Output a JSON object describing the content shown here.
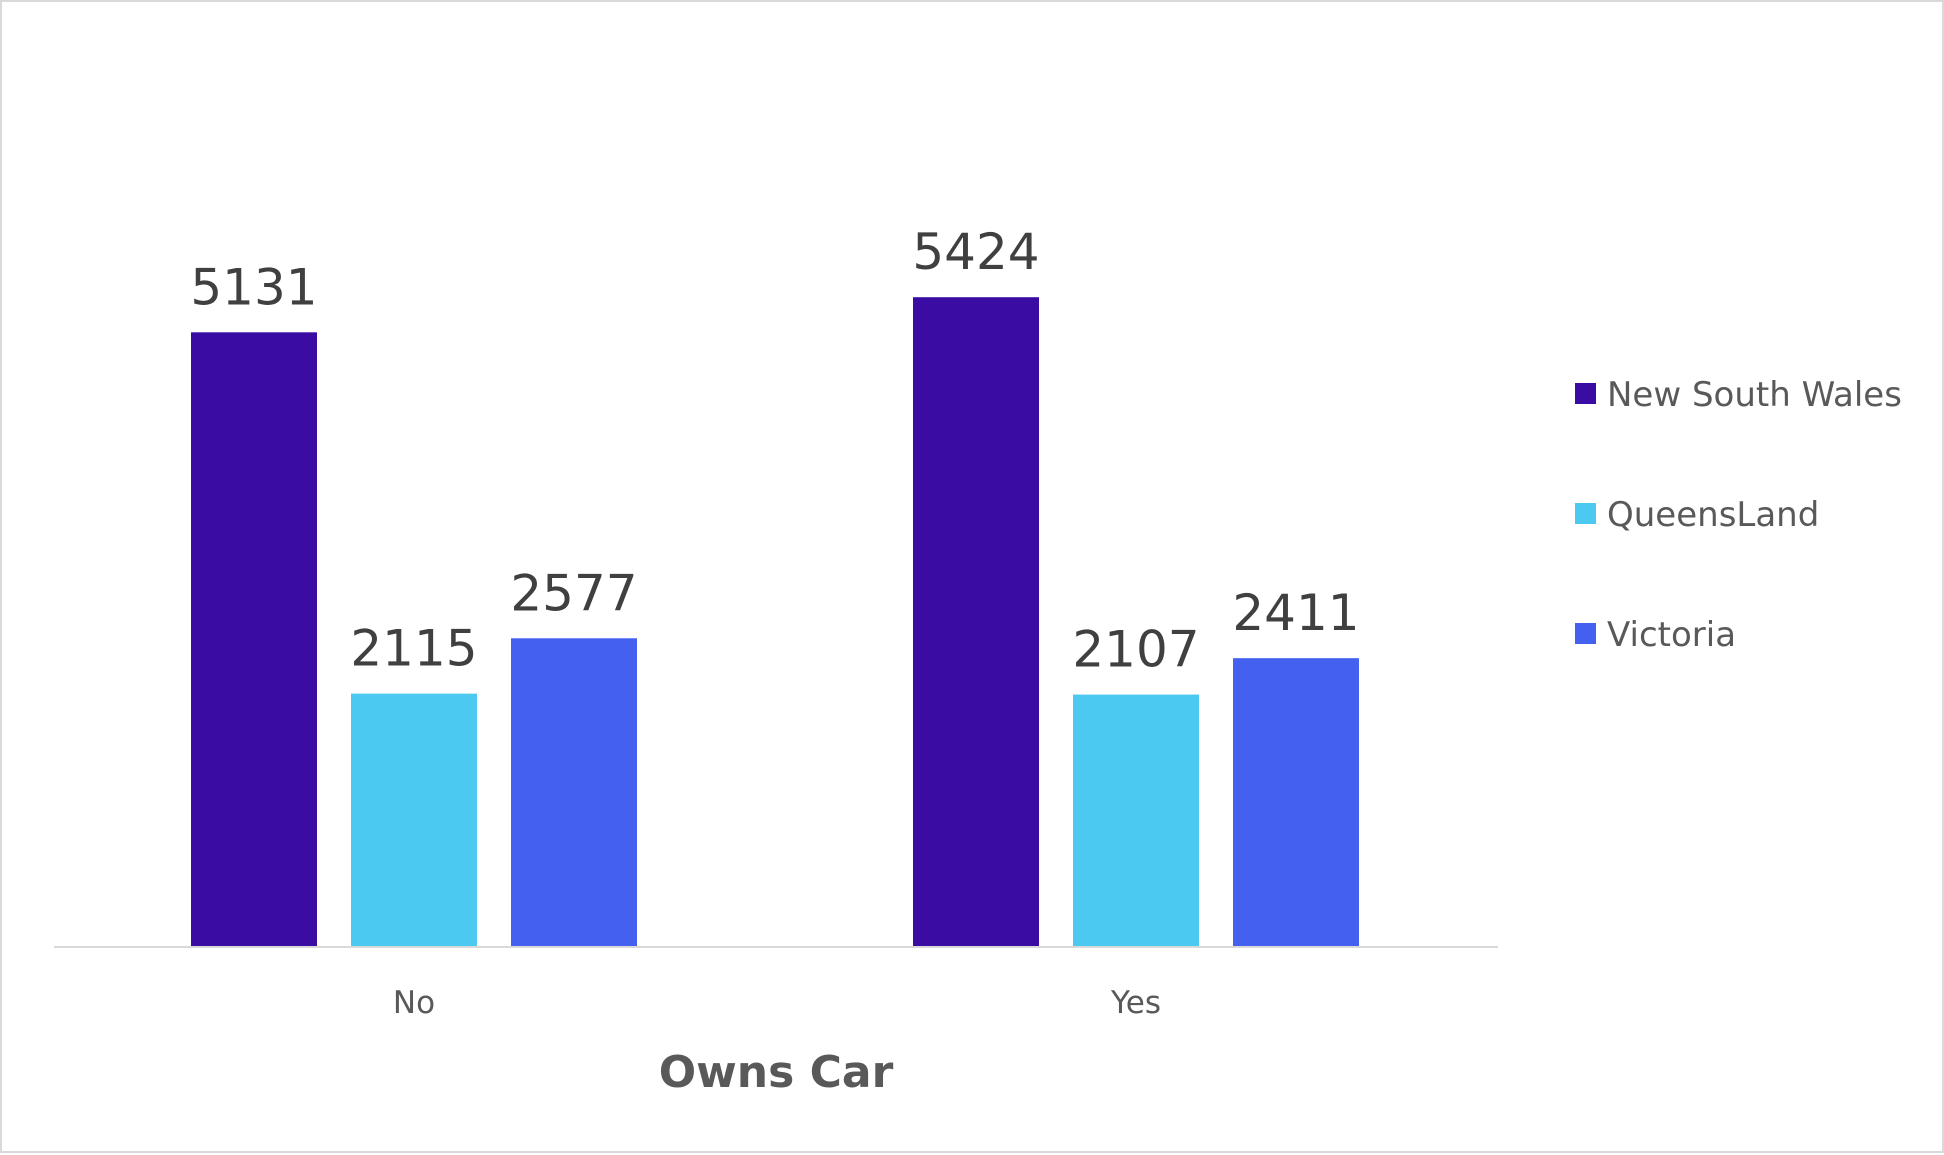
{
  "chart_data": {
    "type": "bar",
    "categories": [
      "No",
      "Yes"
    ],
    "series": [
      {
        "name": "New South Wales",
        "values": [
          5131,
          5424
        ],
        "color": "#3a0ca3"
      },
      {
        "name": "QueensLand",
        "values": [
          2115,
          2107
        ],
        "color": "#4cc9f0"
      },
      {
        "name": "Victoria",
        "values": [
          2577,
          2411
        ],
        "color": "#4361ee"
      }
    ],
    "title": "",
    "xlabel": "Owns Car",
    "ylabel": "",
    "ylim": [
      0,
      5500
    ],
    "grid": false,
    "legend_position": "right",
    "data_labels": true
  }
}
